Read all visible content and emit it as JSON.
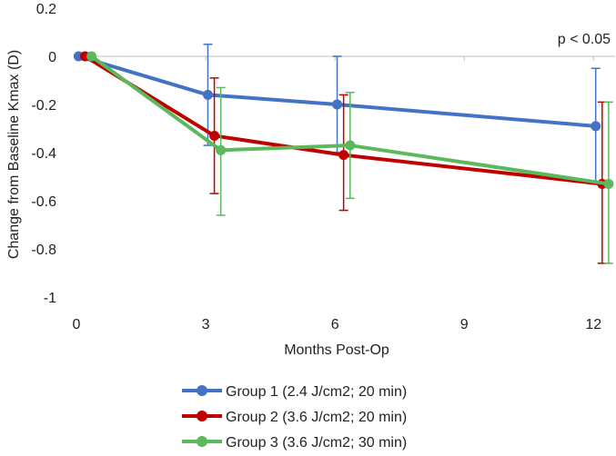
{
  "chart_data": {
    "type": "line",
    "title": "",
    "xlabel": "Months Post-Op",
    "ylabel": "Change from Baseline Kmax (D)",
    "annotation": "p < 0.05",
    "xlim": [
      0,
      12.5
    ],
    "ylim": [
      -1,
      0.2
    ],
    "x_ticks": [
      0,
      3,
      6,
      9,
      12
    ],
    "x_tick_labels": [
      "0",
      "3",
      "6",
      "9",
      "12"
    ],
    "y_ticks": [
      0.2,
      0,
      -0.2,
      -0.4,
      -0.6,
      -0.8,
      -1
    ],
    "y_tick_labels": [
      "0.2",
      "0",
      "-0.2",
      "-0.4",
      "-0.6",
      "-0.8",
      "-1"
    ],
    "grid": false,
    "legend_position": "bottom",
    "series": [
      {
        "name": "Group 1 (2.4 J/cm2; 20 min)",
        "color": "#4472c4",
        "x": [
          0.05,
          3.05,
          6.05,
          12.05
        ],
        "y": [
          0,
          -0.16,
          -0.2,
          -0.29
        ],
        "err_high": [
          0,
          0.05,
          0.0,
          -0.05
        ],
        "err_low": [
          0,
          -0.37,
          -0.4,
          -0.53
        ]
      },
      {
        "name": "Group 2 (3.6 J/cm2; 20 min)",
        "color": "#c00000",
        "x": [
          0.2,
          3.2,
          6.2,
          12.2
        ],
        "y": [
          0,
          -0.33,
          -0.41,
          -0.53
        ],
        "err_high": [
          0,
          -0.09,
          -0.16,
          -0.19
        ],
        "err_low": [
          0,
          -0.57,
          -0.64,
          -0.86
        ]
      },
      {
        "name": "Group 3 (3.6 J/cm2; 30 min)",
        "color": "#5cb85c",
        "x": [
          0.35,
          3.35,
          6.35,
          12.35
        ],
        "y": [
          0,
          -0.39,
          -0.37,
          -0.53
        ],
        "err_high": [
          0,
          -0.13,
          -0.15,
          -0.19
        ],
        "err_low": [
          0,
          -0.66,
          -0.59,
          -0.86
        ]
      }
    ]
  }
}
